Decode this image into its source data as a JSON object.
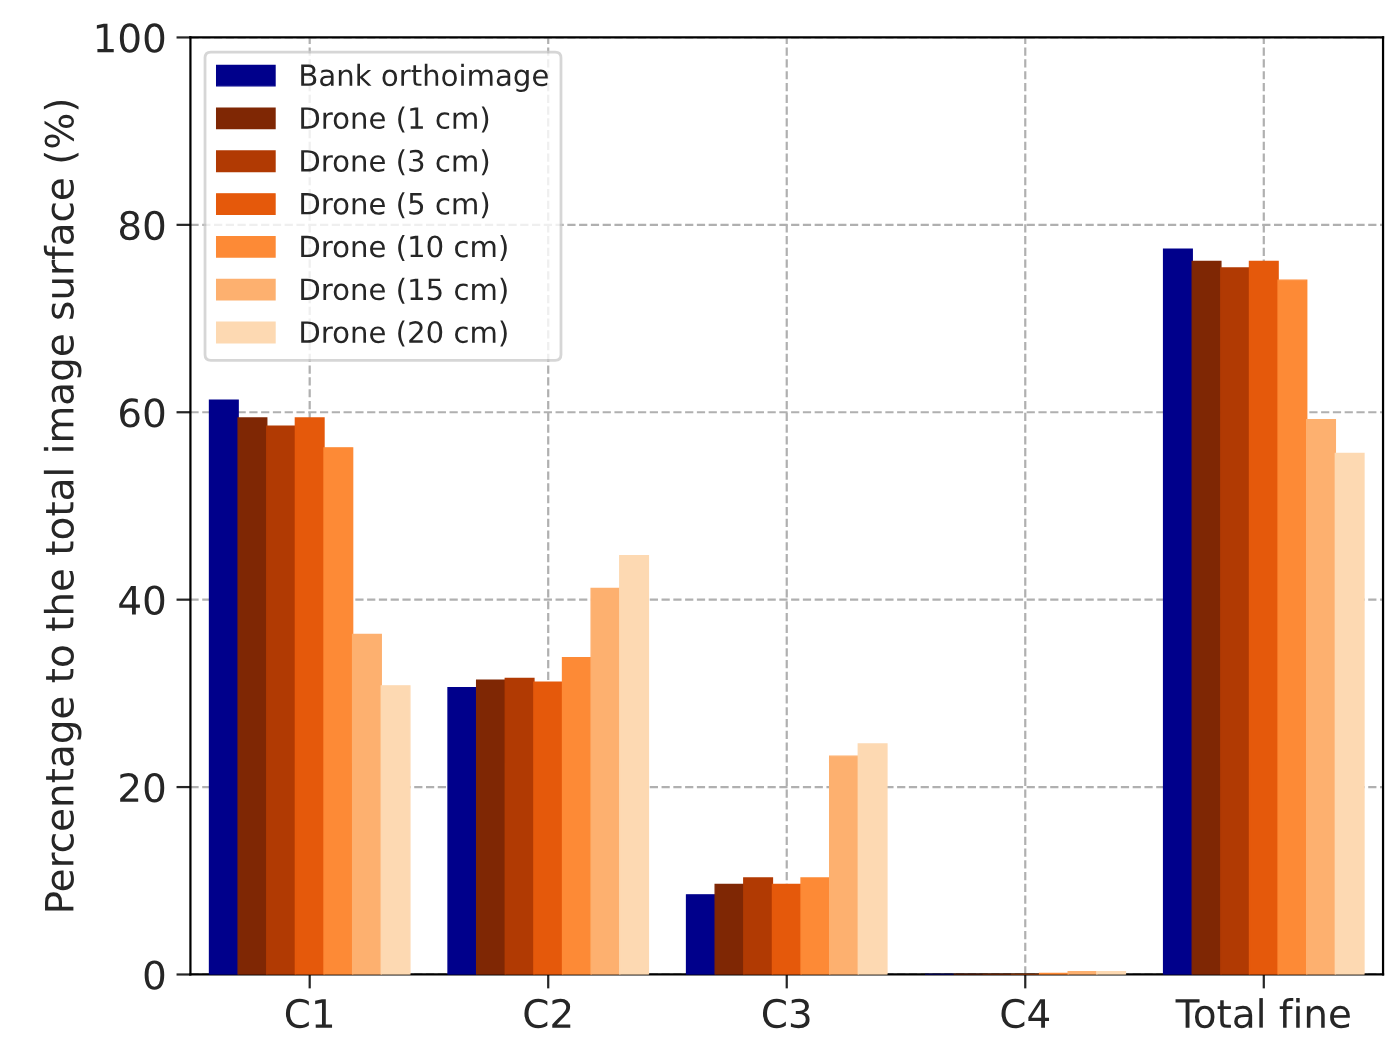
{
  "chart_data": {
    "type": "bar",
    "ylabel": "Percentage to the total image surface (%)",
    "categories": [
      "C1",
      "C2",
      "C3",
      "C4",
      "Total fine"
    ],
    "series": [
      {
        "name": "Bank orthoimage",
        "color": "#00008b",
        "values": [
          61.3,
          30.6,
          8.5,
          0,
          77.4
        ]
      },
      {
        "name": "Drone (1 cm)",
        "color": "#7f2704",
        "values": [
          59.4,
          31.4,
          9.6,
          0,
          76.1
        ]
      },
      {
        "name": "Drone (3 cm)",
        "color": "#b13a03",
        "values": [
          58.5,
          31.6,
          10.3,
          0,
          75.4
        ]
      },
      {
        "name": "Drone (5 cm)",
        "color": "#e5590b",
        "values": [
          59.4,
          31.2,
          9.6,
          0,
          76.1
        ]
      },
      {
        "name": "Drone (10 cm)",
        "color": "#fd8a36",
        "values": [
          56.2,
          33.8,
          10.3,
          0.1,
          74.1
        ]
      },
      {
        "name": "Drone (15 cm)",
        "color": "#fdb06f",
        "values": [
          36.3,
          41.2,
          23.3,
          0.3,
          59.2
        ]
      },
      {
        "name": "Drone (20 cm)",
        "color": "#fdd9b2",
        "values": [
          30.8,
          44.7,
          24.6,
          0.3,
          55.6
        ]
      }
    ],
    "ylim": [
      0,
      100
    ],
    "yticks": [
      0,
      20,
      40,
      60,
      80,
      100
    ],
    "grid": true,
    "legend": "top left"
  }
}
